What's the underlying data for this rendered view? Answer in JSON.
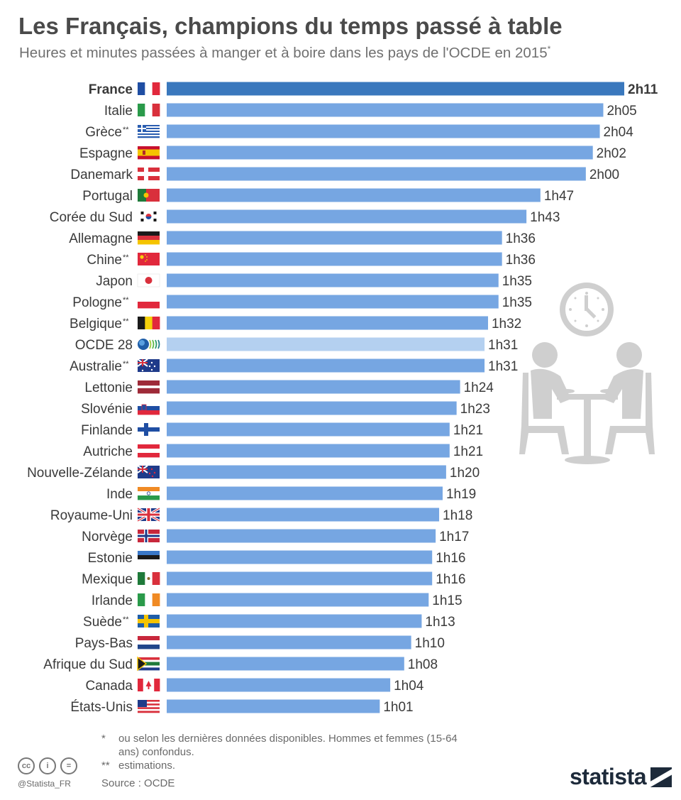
{
  "title": "Les Français, champions du temps passé à table",
  "subtitle": "Heures et minutes passées à manger et à boire dans les pays de l'OCDE en 2015",
  "subtitle_mark": "*",
  "colors": {
    "bar": "#76a6e2",
    "highlight": "#3a78bd",
    "oecd": "#b4d0f0",
    "illustration": "#cfcfcf"
  },
  "chart_data": {
    "type": "bar",
    "orientation": "horizontal",
    "unit": "heures et minutes",
    "categories": [
      "France",
      "Italie",
      "Grèce**",
      "Espagne",
      "Danemark",
      "Portugal",
      "Corée du Sud",
      "Allemagne",
      "Chine**",
      "Japon",
      "Pologne**",
      "Belgique**",
      "OCDE 28",
      "Australie**",
      "Lettonie",
      "Slovénie",
      "Finlande",
      "Autriche",
      "Nouvelle-Zélande",
      "Inde",
      "Royaume-Uni",
      "Norvège",
      "Estonie",
      "Mexique",
      "Irlande",
      "Suède**",
      "Pays-Bas",
      "Afrique du Sud",
      "Canada",
      "États-Unis"
    ],
    "values_minutes": [
      131,
      125,
      124,
      122,
      120,
      107,
      103,
      96,
      96,
      95,
      95,
      92,
      91,
      91,
      84,
      83,
      81,
      81,
      80,
      79,
      78,
      77,
      76,
      76,
      75,
      73,
      70,
      68,
      64,
      61
    ],
    "labels": [
      "2h11",
      "2h05",
      "2h04",
      "2h02",
      "2h00",
      "1h47",
      "1h43",
      "1h36",
      "1h36",
      "1h35",
      "1h35",
      "1h32",
      "1h31",
      "1h31",
      "1h24",
      "1h23",
      "1h21",
      "1h21",
      "1h20",
      "1h19",
      "1h18",
      "1h17",
      "1h16",
      "1h16",
      "1h15",
      "1h13",
      "1h10",
      "1h08",
      "1h04",
      "1h01"
    ],
    "flags": [
      "fr",
      "it",
      "gr",
      "es",
      "dk",
      "pt",
      "kr",
      "de",
      "cn",
      "jp",
      "pl",
      "be",
      "oecd",
      "au",
      "lv",
      "si",
      "fi",
      "at",
      "nz",
      "in",
      "gb",
      "no",
      "ee",
      "mx",
      "ie",
      "se",
      "nl",
      "za",
      "ca",
      "us"
    ],
    "highlight": "France",
    "reference": "OCDE 28"
  },
  "footnotes": [
    {
      "mark": "*",
      "text": "ou selon les dernières données disponibles. Hommes et femmes (15-64 ans) confondus."
    },
    {
      "mark": "**",
      "text": "estimations."
    }
  ],
  "source": "Source : OCDE",
  "handle": "@Statista_FR",
  "license_icons": [
    "cc",
    "by",
    "nd"
  ],
  "brand": "statista"
}
